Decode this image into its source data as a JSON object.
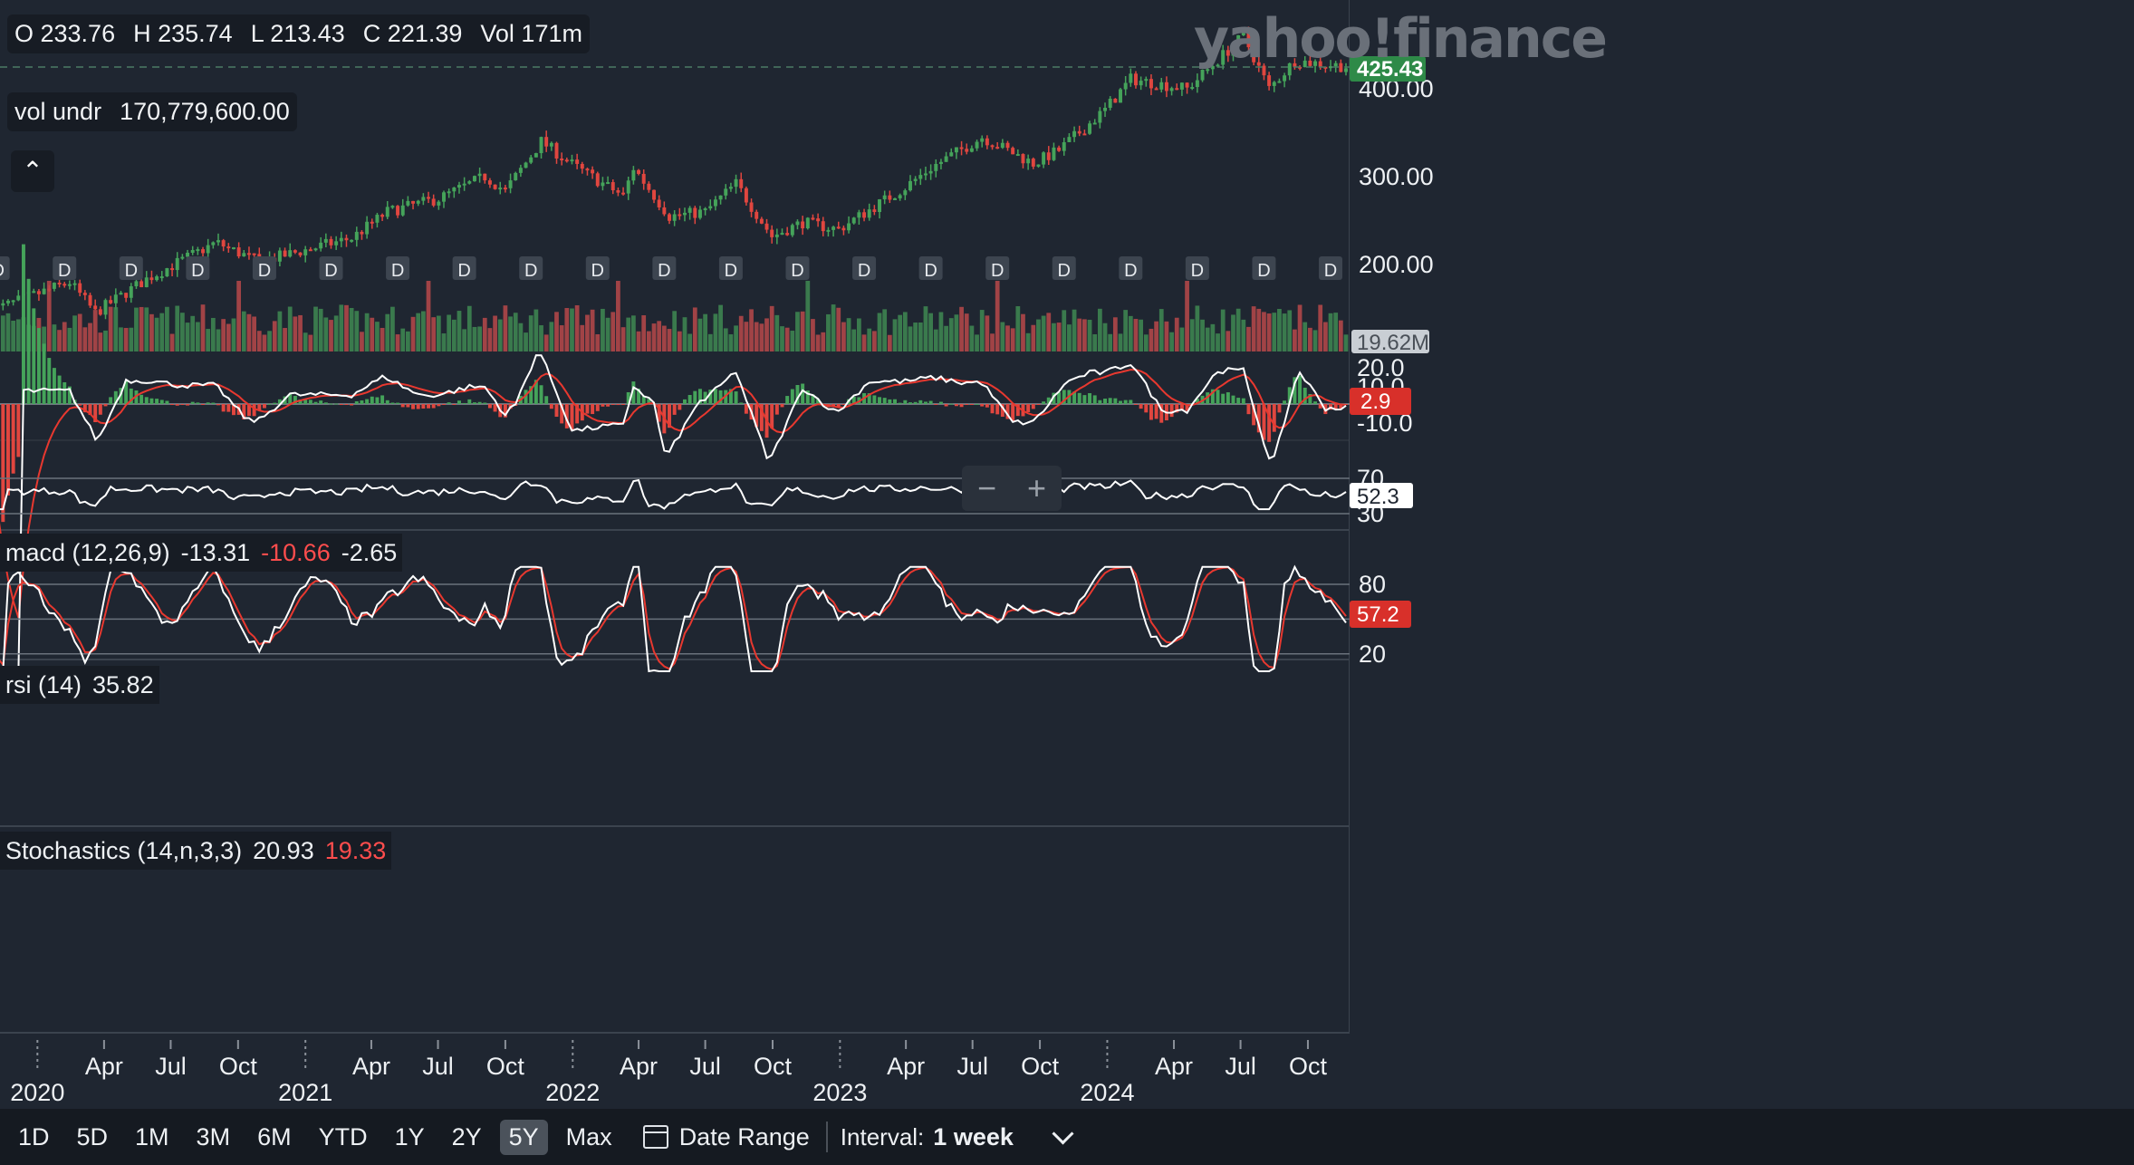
{
  "brand": {
    "logo": "yahoo!finance"
  },
  "ohlc": {
    "o": "O 233.76",
    "h": "H 235.74",
    "l": "L 213.43",
    "c": "C 221.39",
    "vol": "Vol 171m"
  },
  "volume_readout": {
    "label": "vol undr",
    "value": "170,779,600.00"
  },
  "price_axis": {
    "ticks": [
      "400.00",
      "300.00",
      "200.00"
    ],
    "last_price": "425.43",
    "last_volume": "19.62M"
  },
  "macd": {
    "label": "macd (12,26,9)",
    "v1": "-13.31",
    "v2": "-10.66",
    "v3": "-2.65",
    "ticks": [
      "20.0",
      "10.0",
      "-10.0"
    ],
    "last": "2.9"
  },
  "rsi": {
    "label": "rsi (14)",
    "value": "35.82",
    "ticks": [
      "70",
      "30"
    ],
    "last": "52.3"
  },
  "stoch": {
    "label": "Stochastics (14,n,3,3)",
    "k": "20.93",
    "d": "19.33",
    "ticks": [
      "80",
      "20"
    ],
    "last": "57.2"
  },
  "dividend_marker": "D",
  "zoom": {
    "minus": "−",
    "plus": "+"
  },
  "x_axis": {
    "months": [
      "Apr",
      "Jul",
      "Oct",
      "Apr",
      "Jul",
      "Oct",
      "Apr",
      "Jul",
      "Oct",
      "Apr",
      "Jul",
      "Oct",
      "Apr",
      "Jul",
      "Oct"
    ],
    "years": [
      "2020",
      "2021",
      "2022",
      "2023",
      "2024"
    ]
  },
  "range_buttons": [
    "1D",
    "5D",
    "1M",
    "3M",
    "6M",
    "YTD",
    "1Y",
    "2Y",
    "5Y",
    "Max"
  ],
  "active_range": "5Y",
  "date_range_label": "Date Range",
  "interval": {
    "label": "Interval:",
    "value": "1 week"
  },
  "colors": {
    "up": "#45a35a",
    "down": "#e0463f",
    "background": "#1f2631",
    "macd_line": "#ffffff",
    "signal_line": "#e8382f"
  },
  "chart_data": {
    "type": "candlestick",
    "interval": "1 week",
    "range": "5Y",
    "price_keypoints": [
      {
        "date": "2019-11-01",
        "price": 148
      },
      {
        "date": "2020-02-14",
        "price": 180
      },
      {
        "date": "2020-03-20",
        "price": 145
      },
      {
        "date": "2020-06-01",
        "price": 185
      },
      {
        "date": "2020-09-01",
        "price": 225
      },
      {
        "date": "2020-10-30",
        "price": 203
      },
      {
        "date": "2021-01-08",
        "price": 218
      },
      {
        "date": "2021-03-05",
        "price": 230
      },
      {
        "date": "2021-04-23",
        "price": 260
      },
      {
        "date": "2021-07-02",
        "price": 275
      },
      {
        "date": "2021-09-03",
        "price": 300
      },
      {
        "date": "2021-10-01",
        "price": 284
      },
      {
        "date": "2021-11-19",
        "price": 340
      },
      {
        "date": "2022-01-07",
        "price": 310
      },
      {
        "date": "2022-03-11",
        "price": 278
      },
      {
        "date": "2022-03-25",
        "price": 310
      },
      {
        "date": "2022-05-13",
        "price": 255
      },
      {
        "date": "2022-07-01",
        "price": 260
      },
      {
        "date": "2022-08-12",
        "price": 292
      },
      {
        "date": "2022-09-30",
        "price": 232
      },
      {
        "date": "2022-11-11",
        "price": 248
      },
      {
        "date": "2022-12-30",
        "price": 240
      },
      {
        "date": "2023-03-31",
        "price": 288
      },
      {
        "date": "2023-05-05",
        "price": 310
      },
      {
        "date": "2023-07-14",
        "price": 345
      },
      {
        "date": "2023-09-22",
        "price": 315
      },
      {
        "date": "2023-10-27",
        "price": 330
      },
      {
        "date": "2023-12-29",
        "price": 376
      },
      {
        "date": "2024-02-02",
        "price": 411
      },
      {
        "date": "2024-04-19",
        "price": 400
      },
      {
        "date": "2024-07-05",
        "price": 460
      },
      {
        "date": "2024-08-09",
        "price": 400
      },
      {
        "date": "2024-09-13",
        "price": 432
      },
      {
        "date": "2024-11-22",
        "price": 425.43
      }
    ],
    "last_ohlc": {
      "open": 233.76,
      "high": 235.74,
      "low": 213.43,
      "close": 221.39,
      "volume": "171m"
    },
    "y_axis": {
      "ticks": [
        200,
        300,
        400
      ],
      "last": 425.43
    },
    "dividend_dates": [
      "2019-11-08",
      "2020-02-07",
      "2020-05-08",
      "2020-08-07",
      "2020-11-06",
      "2021-02-05",
      "2021-05-07",
      "2021-08-06",
      "2021-11-05",
      "2022-02-04",
      "2022-05-06",
      "2022-08-05",
      "2022-11-04",
      "2023-02-03",
      "2023-05-05",
      "2023-08-04",
      "2023-11-03",
      "2024-02-02",
      "2024-05-03",
      "2024-08-02",
      "2024-11-01"
    ],
    "indicators": {
      "macd": {
        "params": "12,26,9",
        "macd": -13.31,
        "signal": -10.66,
        "histogram": -2.65,
        "last": 2.9
      },
      "rsi": {
        "period": 14,
        "value": 35.82,
        "last": 52.3,
        "bands": [
          30,
          70
        ]
      },
      "stochastics": {
        "params": "14,n,3,3",
        "k": 20.93,
        "d": 19.33,
        "last": 57.2,
        "bands": [
          20,
          80
        ]
      }
    },
    "x_ticks": [
      "2020",
      "Apr",
      "Jul",
      "Oct",
      "2021",
      "Apr",
      "Jul",
      "Oct",
      "2022",
      "Apr",
      "Jul",
      "Oct",
      "2023",
      "Apr",
      "Jul",
      "Oct",
      "2024",
      "Apr",
      "Jul",
      "Oct"
    ]
  }
}
